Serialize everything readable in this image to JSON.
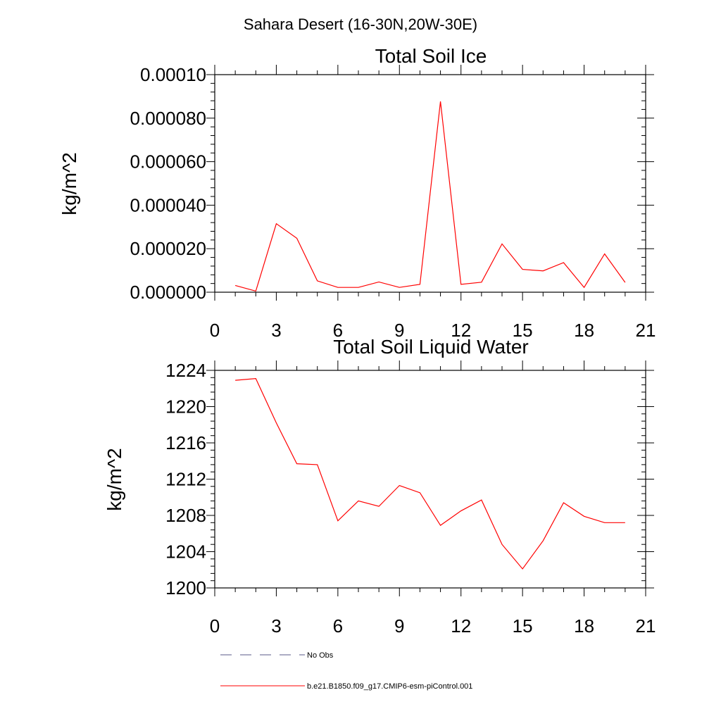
{
  "figure": {
    "title": "Sahara Desert (16-30N,20W-30E)"
  },
  "chart_data": [
    {
      "type": "line",
      "title": "Total Soil Ice",
      "xlabel": "",
      "ylabel": "kg/m^2",
      "xlim": [
        0,
        21
      ],
      "ylim": [
        0,
        0.0001
      ],
      "x_ticks": [
        0,
        3,
        6,
        9,
        12,
        15,
        18,
        21
      ],
      "x_tick_labels": [
        "0",
        "3",
        "6",
        "9",
        "12",
        "15",
        "18",
        "21"
      ],
      "y_ticks": [
        0,
        2e-05,
        4e-05,
        6e-05,
        8e-05,
        0.0001
      ],
      "y_tick_labels": [
        "0.000000",
        "0.000020",
        "0.000040",
        "0.000060",
        "0.000080",
        "0.00010"
      ],
      "series": [
        {
          "name": "b.e21.B1850.f09_g17.CMIP6-esm-piControl.001",
          "color": "#ff0000",
          "x": [
            1,
            2,
            3,
            4,
            5,
            6,
            7,
            8,
            9,
            10,
            11,
            12,
            13,
            14,
            15,
            16,
            17,
            18,
            19,
            20
          ],
          "y": [
            3.1e-06,
            5e-07,
            3.15e-05,
            2.48e-05,
            5.2e-06,
            2.2e-06,
            2.2e-06,
            4.7e-06,
            2.2e-06,
            3.6e-06,
            8.77e-05,
            3.6e-06,
            4.6e-06,
            2.22e-05,
            1.05e-05,
            9.8e-06,
            1.36e-05,
            2.2e-06,
            1.76e-05,
            4.5e-06
          ]
        }
      ],
      "grid": false
    },
    {
      "type": "line",
      "title": "Total Soil Liquid Water",
      "xlabel": "",
      "ylabel": "kg/m^2",
      "xlim": [
        0,
        21
      ],
      "ylim": [
        1200,
        1224
      ],
      "x_ticks": [
        0,
        3,
        6,
        9,
        12,
        15,
        18,
        21
      ],
      "x_tick_labels": [
        "0",
        "3",
        "6",
        "9",
        "12",
        "15",
        "18",
        "21"
      ],
      "y_ticks": [
        1200,
        1204,
        1208,
        1212,
        1216,
        1220,
        1224
      ],
      "y_tick_labels": [
        "1200",
        "1204",
        "1208",
        "1212",
        "1216",
        "1220",
        "1224"
      ],
      "series": [
        {
          "name": "b.e21.B1850.f09_g17.CMIP6-esm-piControl.001",
          "color": "#ff0000",
          "x": [
            1,
            2,
            3,
            4,
            5,
            6,
            7,
            8,
            9,
            10,
            11,
            12,
            13,
            14,
            15,
            16,
            17,
            18,
            19,
            20
          ],
          "y": [
            1222.9,
            1223.1,
            1218.2,
            1213.7,
            1213.6,
            1207.4,
            1209.6,
            1209.0,
            1211.3,
            1210.5,
            1206.9,
            1208.5,
            1209.7,
            1204.8,
            1202.1,
            1205.2,
            1209.4,
            1207.9,
            1207.2,
            1207.2
          ]
        }
      ],
      "grid": false
    }
  ],
  "legend": {
    "items": [
      {
        "label": "No Obs",
        "color": "#5a5a8a",
        "style": "dashed"
      },
      {
        "label": "b.e21.B1850.f09_g17.CMIP6-esm-piControl.001",
        "color": "#ff0000",
        "style": "solid"
      }
    ]
  }
}
